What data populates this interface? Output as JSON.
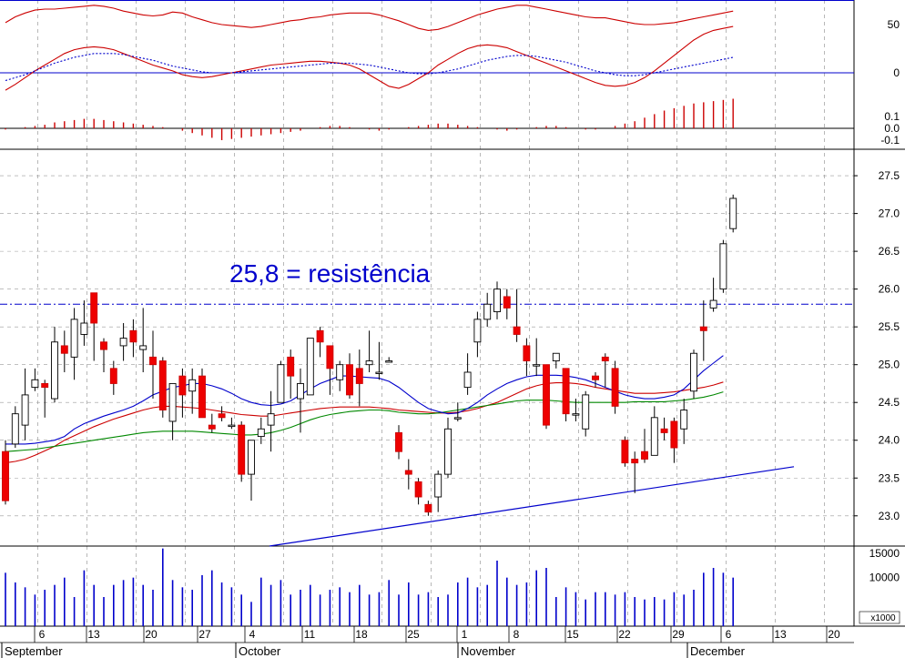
{
  "chart_data": {
    "type": "candlestick",
    "annotation": "25,8 = resistência",
    "colors": {
      "up_candle": "#ffffff",
      "down_candle": "#ee0000",
      "ma_fast": "#0000cc",
      "ma_mid": "#cc0000",
      "ma_slow": "#008800",
      "resistance_line": "#0000cc",
      "volume": "#0000cc",
      "histogram": "#cc0000",
      "grid": "#9a9a9a"
    },
    "price_axis": {
      "ticks": [
        "23.0",
        "23.5",
        "24.0",
        "24.5",
        "25.0",
        "25.5",
        "26.0",
        "26.5",
        "27.0",
        "27.5"
      ],
      "range": [
        22.6,
        27.85
      ]
    },
    "volume_axis": {
      "ticks": [
        "10000",
        "15000"
      ],
      "multiplier_label": "x1000",
      "range": [
        0,
        16500
      ]
    },
    "oscillator_axis": {
      "ticks": [
        "50",
        "0"
      ]
    },
    "histogram_axis": {
      "ticks": [
        "0.1",
        "0.0",
        "-0.1"
      ]
    },
    "x_axis": {
      "day_labels": [
        "6",
        "13",
        "20",
        "27",
        "4",
        "11",
        "18",
        "25",
        "1",
        "8",
        "15",
        "22",
        "29",
        "6",
        "13",
        "20"
      ],
      "months": [
        "September",
        "October",
        "November",
        "December"
      ]
    },
    "resistance_level": 25.8,
    "support_trendline": {
      "from": [
        "Oct 2",
        22.6
      ],
      "to": [
        "Dec 15",
        23.65
      ]
    },
    "candles": [
      [
        23.85,
        23.2,
        24.0,
        23.15
      ],
      [
        23.95,
        24.35,
        24.45,
        23.9
      ],
      [
        24.2,
        24.6,
        24.95,
        24.0
      ],
      [
        24.7,
        24.8,
        24.95,
        24.65
      ],
      [
        24.75,
        24.7,
        24.8,
        24.3
      ],
      [
        24.55,
        25.3,
        25.5,
        24.5
      ],
      [
        25.25,
        25.15,
        25.45,
        24.9
      ],
      [
        25.1,
        25.6,
        25.75,
        24.8
      ],
      [
        25.4,
        25.55,
        25.85,
        25.25
      ],
      [
        25.95,
        25.55,
        25.95,
        25.05
      ],
      [
        25.3,
        25.2,
        25.35,
        24.9
      ],
      [
        24.95,
        24.75,
        25.05,
        24.6
      ],
      [
        25.25,
        25.35,
        25.55,
        25.05
      ],
      [
        25.45,
        25.3,
        25.6,
        25.1
      ],
      [
        25.2,
        25.25,
        25.75,
        24.9
      ],
      [
        25.1,
        25.0,
        25.45,
        24.55
      ],
      [
        25.05,
        24.4,
        25.1,
        24.3
      ],
      [
        24.25,
        24.75,
        24.75,
        24.0
      ],
      [
        24.85,
        24.6,
        24.95,
        24.3
      ],
      [
        24.65,
        24.8,
        24.95,
        24.35
      ],
      [
        24.85,
        24.3,
        24.95,
        24.3
      ],
      [
        24.2,
        24.15,
        24.35,
        24.1
      ],
      [
        24.35,
        24.3,
        24.45,
        24.25
      ],
      [
        24.2,
        24.2,
        24.3,
        24.15
      ],
      [
        24.2,
        23.55,
        24.25,
        23.45
      ],
      [
        23.55,
        24.0,
        24.0,
        23.2
      ],
      [
        24.05,
        24.15,
        24.3,
        23.95
      ],
      [
        24.2,
        24.35,
        24.65,
        23.85
      ],
      [
        24.5,
        25.0,
        25.05,
        24.5
      ],
      [
        25.1,
        24.85,
        25.2,
        24.55
      ],
      [
        24.55,
        24.75,
        24.95,
        24.1
      ],
      [
        24.6,
        25.35,
        25.35,
        24.6
      ],
      [
        25.45,
        25.3,
        25.5,
        25.1
      ],
      [
        25.25,
        24.95,
        25.2,
        24.6
      ],
      [
        24.8,
        25.0,
        25.05,
        24.65
      ],
      [
        25.0,
        24.6,
        25.15,
        24.55
      ],
      [
        24.95,
        24.75,
        25.2,
        24.45
      ],
      [
        25.0,
        25.05,
        25.45,
        24.9
      ],
      [
        24.9,
        24.9,
        25.3,
        24.8
      ],
      [
        25.05,
        25.05,
        25.1,
        25.05
      ],
      [
        24.1,
        23.85,
        24.2,
        23.75
      ],
      [
        23.6,
        23.55,
        23.75,
        23.35
      ],
      [
        23.45,
        23.25,
        23.5,
        23.15
      ],
      [
        23.15,
        23.05,
        23.2,
        23.0
      ],
      [
        23.25,
        23.55,
        23.6,
        23.05
      ],
      [
        23.55,
        24.15,
        24.3,
        23.5
      ],
      [
        24.3,
        24.3,
        24.5,
        24.25
      ],
      [
        24.7,
        24.9,
        25.15,
        24.6
      ],
      [
        25.3,
        25.6,
        25.7,
        25.1
      ],
      [
        25.6,
        25.8,
        25.95,
        25.5
      ],
      [
        25.7,
        26.0,
        26.1,
        25.6
      ],
      [
        25.9,
        25.75,
        26.0,
        25.6
      ],
      [
        25.5,
        25.4,
        26.0,
        25.3
      ],
      [
        25.25,
        25.05,
        25.35,
        24.85
      ],
      [
        25.0,
        25.0,
        25.35,
        24.85
      ],
      [
        25.0,
        24.2,
        25.0,
        24.15
      ],
      [
        25.05,
        25.15,
        25.15,
        24.95
      ],
      [
        24.95,
        24.35,
        24.95,
        24.25
      ],
      [
        24.35,
        24.35,
        24.55,
        24.25
      ],
      [
        24.15,
        24.6,
        24.65,
        24.05
      ],
      [
        24.85,
        24.8,
        24.9,
        24.7
      ],
      [
        25.1,
        25.05,
        25.15,
        24.7
      ],
      [
        24.95,
        24.45,
        25.05,
        24.35
      ],
      [
        24.0,
        23.7,
        24.05,
        23.65
      ],
      [
        23.75,
        23.7,
        23.85,
        23.3
      ],
      [
        23.85,
        23.75,
        24.15,
        23.7
      ],
      [
        23.8,
        24.3,
        24.45,
        23.8
      ],
      [
        24.15,
        24.1,
        24.3,
        24.0
      ],
      [
        24.25,
        23.9,
        24.3,
        23.7
      ],
      [
        24.15,
        24.4,
        24.55,
        23.95
      ],
      [
        24.65,
        25.15,
        25.2,
        24.55
      ],
      [
        25.5,
        25.45,
        25.85,
        25.05
      ],
      [
        25.75,
        25.85,
        26.15,
        25.7
      ],
      [
        26.0,
        26.6,
        26.65,
        25.95
      ],
      [
        26.8,
        27.2,
        27.25,
        26.75
      ]
    ],
    "moving_averages": {
      "fast": [
        23.95,
        23.95,
        23.95,
        23.96,
        23.98,
        24.0,
        24.05,
        24.15,
        24.22,
        24.27,
        24.32,
        24.36,
        24.4,
        24.45,
        24.52,
        24.6,
        24.65,
        24.7,
        24.72,
        24.75,
        24.75,
        24.72,
        24.68,
        24.62,
        24.55,
        24.5,
        24.47,
        24.46,
        24.48,
        24.52,
        24.6,
        24.68,
        24.75,
        24.8,
        24.85,
        24.85,
        24.84,
        24.83,
        24.82,
        24.78,
        24.7,
        24.6,
        24.5,
        24.42,
        24.38,
        24.35,
        24.36,
        24.42,
        24.5,
        24.6,
        24.68,
        24.75,
        24.8,
        24.84,
        24.86,
        24.86,
        24.86,
        24.85,
        24.83,
        24.8,
        24.75,
        24.7,
        24.65,
        24.6,
        24.57,
        24.55,
        24.55,
        24.57,
        24.6,
        24.68,
        24.8,
        24.92,
        25.02,
        25.12
      ],
      "mid": [
        23.7,
        23.72,
        23.75,
        23.8,
        23.86,
        23.92,
        24.0,
        24.06,
        24.12,
        24.18,
        24.23,
        24.28,
        24.32,
        24.36,
        24.4,
        24.43,
        24.45,
        24.45,
        24.44,
        24.43,
        24.42,
        24.4,
        24.38,
        24.36,
        24.34,
        24.33,
        24.32,
        24.32,
        24.34,
        24.36,
        24.38,
        24.4,
        24.42,
        24.43,
        24.44,
        24.44,
        24.44,
        24.44,
        24.43,
        24.42,
        24.4,
        24.39,
        24.38,
        24.37,
        24.36,
        24.36,
        24.37,
        24.39,
        24.42,
        24.46,
        24.5,
        24.56,
        24.62,
        24.68,
        24.72,
        24.75,
        24.76,
        24.76,
        24.75,
        24.73,
        24.7,
        24.68,
        24.66,
        24.64,
        24.62,
        24.62,
        24.62,
        24.63,
        24.64,
        24.66,
        24.68,
        24.7,
        24.73,
        24.77
      ],
      "slow": [
        23.85,
        23.86,
        23.87,
        23.88,
        23.9,
        23.92,
        23.94,
        23.96,
        23.98,
        24.0,
        24.02,
        24.04,
        24.06,
        24.08,
        24.1,
        24.11,
        24.12,
        24.12,
        24.12,
        24.12,
        24.11,
        24.1,
        24.09,
        24.08,
        24.07,
        24.07,
        24.08,
        24.1,
        24.13,
        24.17,
        24.22,
        24.27,
        24.31,
        24.34,
        24.36,
        24.38,
        24.39,
        24.4,
        24.4,
        24.39,
        24.37,
        24.36,
        24.35,
        24.35,
        24.36,
        24.38,
        24.4,
        24.42,
        24.44,
        24.46,
        24.48,
        24.5,
        24.52,
        24.53,
        24.53,
        24.53,
        24.52,
        24.51,
        24.5,
        24.5,
        24.5,
        24.5,
        24.5,
        24.5,
        24.51,
        24.51,
        24.51,
        24.51,
        24.52,
        24.53,
        24.55,
        24.57,
        24.6,
        24.64
      ]
    },
    "volume": [
      11000,
      9000,
      8000,
      6500,
      7500,
      8500,
      10000,
      6000,
      11500,
      8500,
      6000,
      8500,
      9500,
      10000,
      8500,
      7500,
      16000,
      9500,
      8000,
      7500,
      10500,
      11500,
      9000,
      8000,
      6500,
      5000,
      10000,
      8500,
      9500,
      6500,
      7500,
      8500,
      6500,
      7500,
      8000,
      7000,
      8500,
      6500,
      7000,
      9500,
      6500,
      9000,
      6500,
      7000,
      6000,
      6500,
      9000,
      10000,
      8000,
      8500,
      13500,
      10000,
      8500,
      9000,
      11500,
      12000,
      6000,
      8000,
      7000,
      5500,
      7000,
      7000,
      6500,
      7000,
      6000,
      5500,
      6000,
      5500,
      7000,
      6500,
      7500,
      11000,
      12000,
      11000,
      10000
    ],
    "oscillator": {
      "upper_line": [
        52,
        58,
        62,
        65,
        66,
        66,
        67,
        68,
        69,
        70,
        69,
        67,
        64,
        62,
        60,
        59,
        60,
        63,
        62,
        58,
        55,
        52,
        50,
        49,
        48,
        47,
        48,
        50,
        52,
        54,
        55,
        57,
        58,
        60,
        61,
        62,
        62,
        62,
        60,
        57,
        54,
        50,
        46,
        44,
        45,
        48,
        52,
        56,
        60,
        63,
        66,
        68,
        70,
        70,
        68,
        66,
        64,
        62,
        60,
        58,
        57,
        57,
        55,
        53,
        51,
        50,
        50,
        51,
        52,
        54,
        56,
        58,
        60,
        62,
        64
      ],
      "lower_line": [
        -18,
        -12,
        -5,
        2,
        8,
        14,
        20,
        24,
        26,
        27,
        26,
        24,
        20,
        16,
        12,
        8,
        5,
        2,
        -2,
        -4,
        -5,
        -4,
        -2,
        0,
        2,
        4,
        6,
        8,
        9,
        10,
        11,
        12,
        12,
        11,
        10,
        8,
        4,
        -2,
        -8,
        -14,
        -16,
        -12,
        -6,
        0,
        8,
        14,
        20,
        25,
        28,
        29,
        28,
        26,
        22,
        18,
        14,
        10,
        6,
        2,
        -2,
        -6,
        -10,
        -13,
        -14,
        -13,
        -10,
        -5,
        2,
        10,
        18,
        26,
        34,
        40,
        44,
        46,
        48
      ],
      "signal_line": [
        -8,
        -5,
        -2,
        2,
        6,
        10,
        13,
        16,
        18,
        20,
        20,
        20,
        19,
        17,
        15,
        13,
        10,
        7,
        5,
        3,
        1,
        0,
        0,
        0,
        1,
        2,
        3,
        4,
        5,
        6,
        7,
        8,
        9,
        10,
        10,
        10,
        9,
        8,
        6,
        4,
        2,
        0,
        -1,
        -1,
        0,
        2,
        4,
        7,
        10,
        13,
        15,
        17,
        18,
        18,
        17,
        15,
        13,
        11,
        8,
        5,
        2,
        0,
        -2,
        -3,
        -3,
        -2,
        0,
        2,
        4,
        6,
        8,
        10,
        12,
        14,
        16
      ]
    },
    "histogram": [
      -0.01,
      0.0,
      0.01,
      0.02,
      0.03,
      0.05,
      0.06,
      0.07,
      0.08,
      0.08,
      0.07,
      0.06,
      0.05,
      0.04,
      0.03,
      0.02,
      0.01,
      0.0,
      -0.02,
      -0.04,
      -0.06,
      -0.08,
      -0.1,
      -0.09,
      -0.08,
      -0.07,
      -0.06,
      -0.05,
      -0.04,
      -0.03,
      -0.02,
      0.0,
      0.01,
      0.02,
      0.02,
      0.01,
      0.0,
      -0.01,
      -0.02,
      -0.01,
      0.0,
      0.01,
      0.02,
      0.03,
      0.04,
      0.04,
      0.03,
      0.02,
      0.01,
      0.0,
      -0.01,
      -0.02,
      -0.01,
      0.0,
      0.01,
      0.02,
      0.02,
      0.01,
      0.0,
      -0.01,
      -0.01,
      0.0,
      0.02,
      0.04,
      0.06,
      0.09,
      0.12,
      0.15,
      0.17,
      0.19,
      0.21,
      0.22,
      0.23,
      0.24,
      0.25
    ]
  }
}
